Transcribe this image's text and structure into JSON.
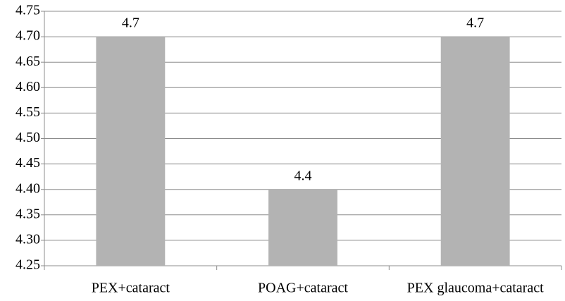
{
  "chart_data": {
    "type": "bar",
    "categories": [
      "PEX+cataract",
      "POAG+cataract",
      "PEX glaucoma+cataract"
    ],
    "values": [
      4.7,
      4.4,
      4.7
    ],
    "color": "#b3b3b3",
    "ylim": [
      4.25,
      4.75
    ],
    "yticks": [
      4.25,
      {
        "value": 4.3,
        "label": "4.30"
      },
      4.35,
      {
        "value": 4.4,
        "label": "4.40"
      },
      4.45,
      {
        "value": 4.5,
        "label": "4.50"
      },
      4.55,
      {
        "value": 4.6,
        "label": "4.60"
      },
      4.65,
      {
        "value": 4.7,
        "label": "4.70"
      },
      4.75
    ],
    "grid": true
  }
}
